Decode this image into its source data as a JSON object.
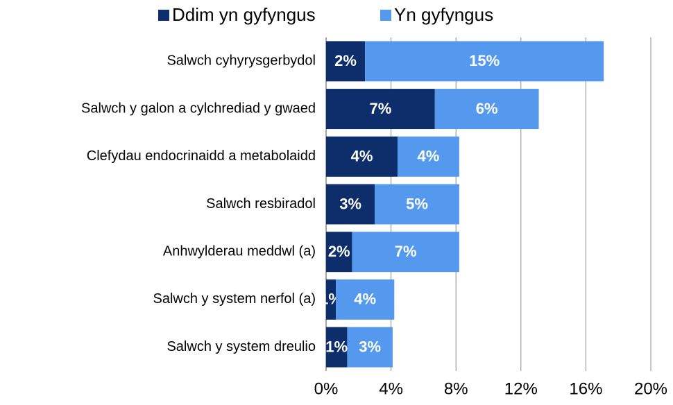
{
  "chart_data": {
    "type": "stacked_barh",
    "categories": [
      "Salwch cyhyrysgerbydol",
      "Salwch y galon a cylchrediad y gwaed",
      "Clefydau endocrinaidd a metabolaidd",
      "Salwch resbiradol",
      "Anhwylderau meddwl (a)",
      "Salwch y system nerfol (a)",
      "Salwch y system dreulio"
    ],
    "series": [
      {
        "name": "Ddim yn gyfyngus",
        "color": "#0d2d6b",
        "values": [
          2.4,
          6.7,
          4.4,
          3.0,
          1.6,
          0.6,
          1.3
        ],
        "value_labels": [
          "2%",
          "7%",
          "4%",
          "3%",
          "2%",
          "1%",
          "1%"
        ]
      },
      {
        "name": "Yn gyfyngus",
        "color": "#5599ee",
        "values": [
          14.7,
          6.4,
          3.8,
          5.2,
          6.6,
          3.6,
          2.8
        ],
        "value_labels": [
          "15%",
          "6%",
          "4%",
          "5%",
          "7%",
          "4%",
          "3%"
        ]
      }
    ],
    "xlim": [
      0,
      20
    ],
    "xticks": [
      {
        "value": 0,
        "label": "0%"
      },
      {
        "value": 4,
        "label": "4%"
      },
      {
        "value": 8,
        "label": "8%"
      },
      {
        "value": 12,
        "label": "12%"
      },
      {
        "value": 16,
        "label": "16%"
      },
      {
        "value": 20,
        "label": "20%"
      }
    ],
    "grid": true,
    "legend": "top"
  }
}
